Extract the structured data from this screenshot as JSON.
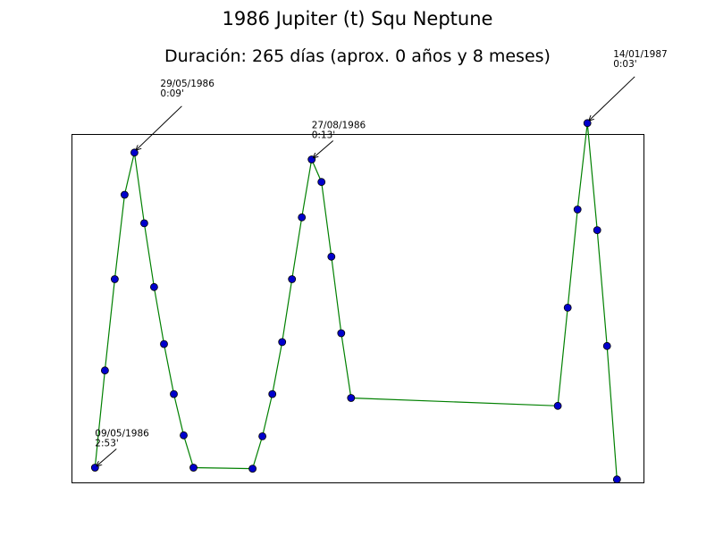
{
  "chart_data": {
    "type": "line",
    "title": "1986 Jupiter (t) Squ Neptune",
    "subtitle": "Duración: 265 días (aprox. 0 años y 8 meses)",
    "xlabel": "",
    "ylabel": "",
    "grid": false,
    "legend": "none",
    "x_unit": "day index",
    "xlim": [
      -2.3,
      55.7
    ],
    "ylim": [
      -1.4,
      34.0
    ],
    "line_color": "#008000",
    "marker_color": "#0000cc",
    "marker_edge": "#000000",
    "series": [
      {
        "x": [
          0,
          1,
          2,
          3,
          4,
          5,
          6,
          7,
          8,
          9,
          10,
          16,
          17,
          18,
          19,
          20,
          21,
          22,
          23,
          24,
          25,
          26,
          47,
          48,
          49,
          50,
          51,
          52,
          53
        ],
        "y": [
          0.1,
          10.0,
          19.3,
          27.9,
          32.2,
          25.0,
          18.5,
          12.7,
          7.6,
          3.4,
          0.1,
          0.0,
          3.3,
          7.6,
          12.9,
          19.3,
          25.6,
          31.5,
          29.2,
          21.6,
          13.8,
          7.2,
          6.4,
          16.4,
          26.4,
          35.2,
          24.3,
          12.5,
          -1.1
        ]
      }
    ],
    "annotations": [
      {
        "x": 0,
        "y": 0.1,
        "date": "09/05/1986",
        "value": "2:53'"
      },
      {
        "x": 4,
        "y": 32.2,
        "date": "29/05/1986",
        "value": "0:09'"
      },
      {
        "x": 22,
        "y": 31.5,
        "date": "27/08/1986",
        "value": "0:13'"
      },
      {
        "x": 50,
        "y": 35.2,
        "date": "14/01/1987",
        "value": "0:03'"
      }
    ]
  }
}
